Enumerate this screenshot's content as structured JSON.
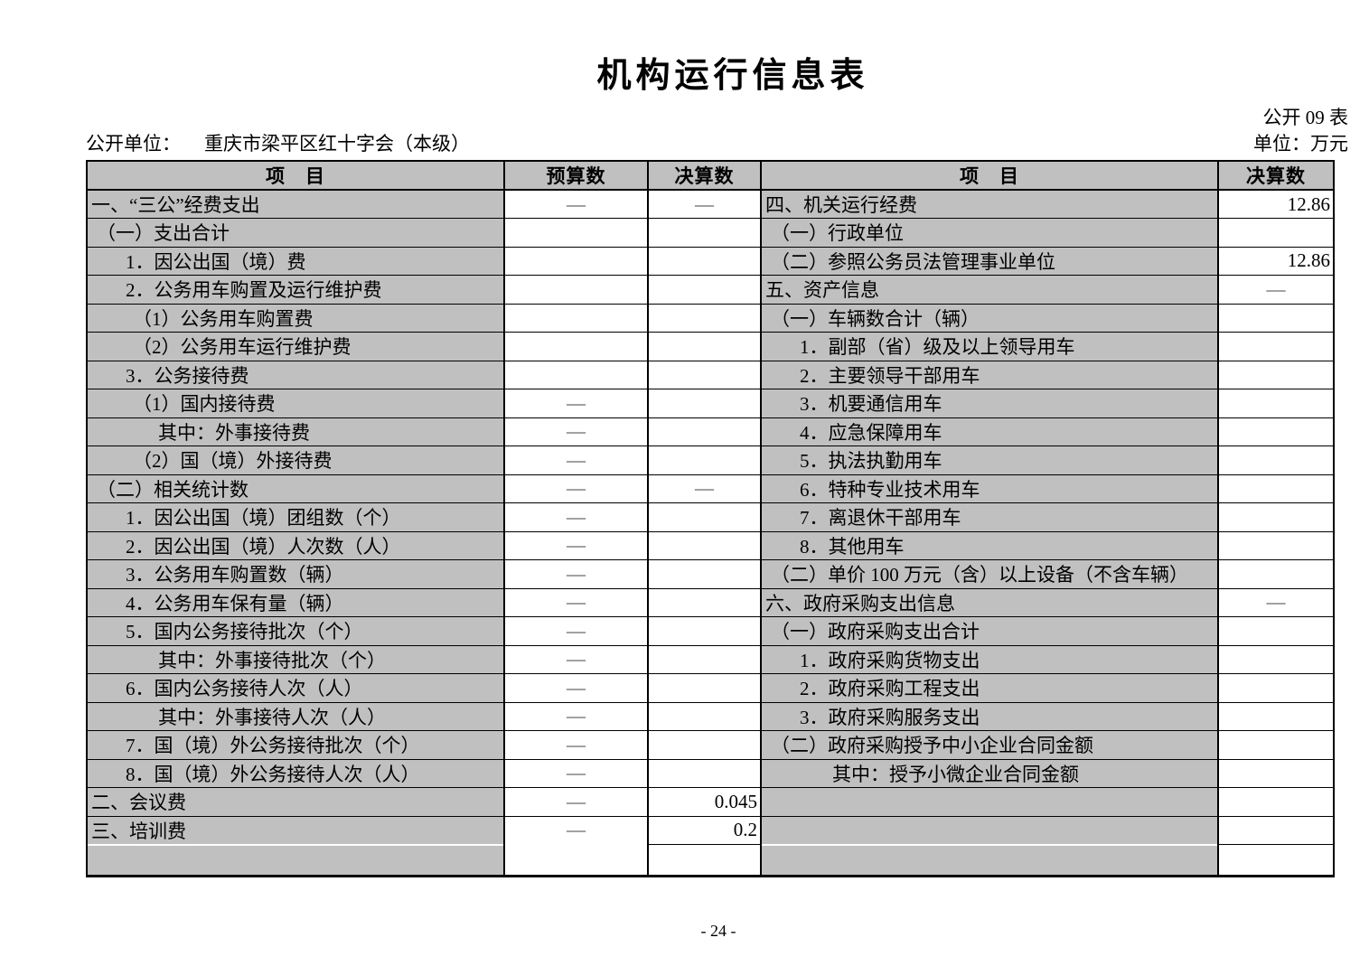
{
  "title": "机构运行信息表",
  "form_code": "公开 09 表",
  "meta": {
    "unit_label": "公开单位：",
    "unit_value": "重庆市梁平区红十字会（本级）",
    "currency_label": "单位：万元"
  },
  "page_number": "- 24 -",
  "colors": {
    "cell_gray": "#c0c0c0",
    "border": "#000000"
  },
  "table": {
    "headers": {
      "left_item": "项　目",
      "budget": "预算数",
      "final": "决算数",
      "right_item": "项　目",
      "right_final": "决算数"
    },
    "rows": [
      {
        "item": "一、“三公”经费支出",
        "indent": 0,
        "budget": "—",
        "final": "—",
        "r_item": "四、机关运行经费",
        "r_indent": 0,
        "r_final": "12.86"
      },
      {
        "item": "（一）支出合计",
        "indent": 1,
        "budget": "",
        "final": "",
        "r_item": "（一）行政单位",
        "r_indent": 1,
        "r_final": ""
      },
      {
        "item": "1．因公出国（境）费",
        "indent": 2,
        "budget": "",
        "final": "",
        "r_item": "（二）参照公务员法管理事业单位",
        "r_indent": 1,
        "r_final": "12.86"
      },
      {
        "item": "2．公务用车购置及运行维护费",
        "indent": 2,
        "budget": "",
        "final": "",
        "r_item": "五、资产信息",
        "r_indent": 0,
        "r_final": "—"
      },
      {
        "item": "（1）公务用车购置费",
        "indent": 3,
        "budget": "",
        "final": "",
        "r_item": "（一）车辆数合计（辆）",
        "r_indent": 1,
        "r_final": ""
      },
      {
        "item": "（2）公务用车运行维护费",
        "indent": 3,
        "budget": "",
        "final": "",
        "r_item": "1．副部（省）级及以上领导用车",
        "r_indent": 2,
        "r_final": ""
      },
      {
        "item": "3．公务接待费",
        "indent": 2,
        "budget": "",
        "final": "",
        "r_item": "2．主要领导干部用车",
        "r_indent": 2,
        "r_final": ""
      },
      {
        "item": "（1）国内接待费",
        "indent": 3,
        "budget": "—",
        "final": "",
        "r_item": "3．机要通信用车",
        "r_indent": 2,
        "r_final": ""
      },
      {
        "item": "其中：外事接待费",
        "indent": 4,
        "budget": "—",
        "final": "",
        "r_item": "4．应急保障用车",
        "r_indent": 2,
        "r_final": ""
      },
      {
        "item": "（2）国（境）外接待费",
        "indent": 3,
        "budget": "—",
        "final": "",
        "r_item": "5．执法执勤用车",
        "r_indent": 2,
        "r_final": ""
      },
      {
        "item": "（二）相关统计数",
        "indent": 1,
        "budget": "—",
        "final": "—",
        "r_item": "6．特种专业技术用车",
        "r_indent": 2,
        "r_final": ""
      },
      {
        "item": "1．因公出国（境）团组数（个）",
        "indent": 2,
        "budget": "—",
        "final": "",
        "r_item": "7．离退休干部用车",
        "r_indent": 2,
        "r_final": ""
      },
      {
        "item": "2．因公出国（境）人次数（人）",
        "indent": 2,
        "budget": "—",
        "final": "",
        "r_item": "8．其他用车",
        "r_indent": 2,
        "r_final": ""
      },
      {
        "item": "3．公务用车购置数（辆）",
        "indent": 2,
        "budget": "—",
        "final": "",
        "r_item": "（二）单价 100 万元（含）以上设备（不含车辆）",
        "r_indent": 1,
        "r_final": ""
      },
      {
        "item": "4．公务用车保有量（辆）",
        "indent": 2,
        "budget": "—",
        "final": "",
        "r_item": "六、政府采购支出信息",
        "r_indent": 0,
        "r_final": "—"
      },
      {
        "item": "5．国内公务接待批次（个）",
        "indent": 2,
        "budget": "—",
        "final": "",
        "r_item": "（一）政府采购支出合计",
        "r_indent": 1,
        "r_final": ""
      },
      {
        "item": "其中：外事接待批次（个）",
        "indent": 4,
        "budget": "—",
        "final": "",
        "r_item": "1．政府采购货物支出",
        "r_indent": 2,
        "r_final": ""
      },
      {
        "item": "6．国内公务接待人次（人）",
        "indent": 2,
        "budget": "—",
        "final": "",
        "r_item": "2．政府采购工程支出",
        "r_indent": 2,
        "r_final": ""
      },
      {
        "item": "其中：外事接待人次（人）",
        "indent": 4,
        "budget": "—",
        "final": "",
        "r_item": "3．政府采购服务支出",
        "r_indent": 2,
        "r_final": ""
      },
      {
        "item": "7．国（境）外公务接待批次（个）",
        "indent": 2,
        "budget": "—",
        "final": "",
        "r_item": "（二）政府采购授予中小企业合同金额",
        "r_indent": 1,
        "r_final": ""
      },
      {
        "item": "8．国（境）外公务接待人次（人）",
        "indent": 2,
        "budget": "—",
        "final": "",
        "r_item": "其中：授予小微企业合同金额",
        "r_indent": 4,
        "r_final": ""
      },
      {
        "item": "二、会议费",
        "indent": 0,
        "budget": "—",
        "final": "0.045",
        "r_item": "",
        "r_indent": 0,
        "r_final": ""
      },
      {
        "item": "三、培训费",
        "indent": 0,
        "budget": "—",
        "final": "0.2",
        "r_item": "",
        "r_indent": 0,
        "r_final": ""
      },
      {
        "item": "",
        "indent": 0,
        "budget": "",
        "final": "",
        "r_item": "",
        "r_indent": 0,
        "r_final": ""
      }
    ]
  }
}
